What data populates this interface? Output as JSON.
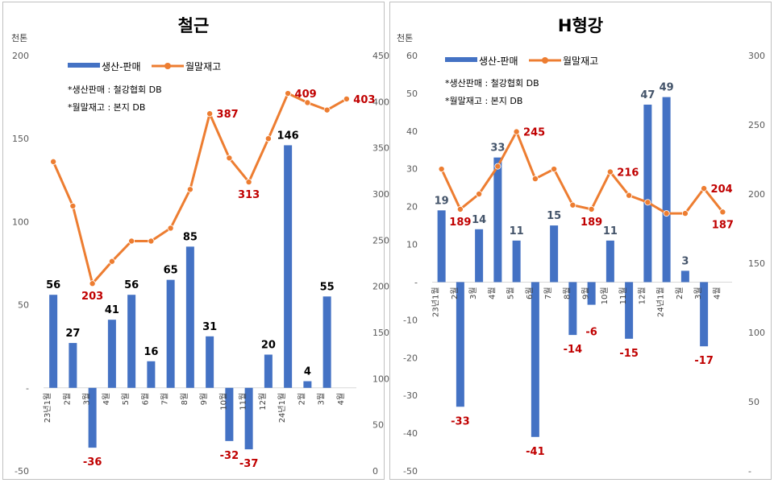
{
  "chart_data": [
    {
      "type": "bar",
      "title": "철근",
      "unit_label": "천톤",
      "legend": [
        "생산-판매",
        "월말재고"
      ],
      "notes": [
        "*생산판매 : 철강협회 DB",
        "*월말재고 : 본지 DB"
      ],
      "categories": [
        "23년1월",
        "2월",
        "3월",
        "4월",
        "5월",
        "6월",
        "7월",
        "8월",
        "9월",
        "10월",
        "11월",
        "12월",
        "24년1월",
        "2월",
        "3월",
        "4월"
      ],
      "series": [
        {
          "name": "생산-판매",
          "chart": "bar",
          "axis": "left",
          "values": [
            56,
            27,
            -36,
            41,
            56,
            16,
            65,
            85,
            31,
            -32,
            -37,
            20,
            146,
            4,
            55,
            null
          ],
          "labels": [
            "56",
            "27",
            "-36",
            "41",
            "56",
            "16",
            "65",
            "85",
            "31",
            "-32",
            "-37",
            "20",
            "146",
            "4",
            "55",
            ""
          ]
        },
        {
          "name": "월말재고",
          "chart": "line",
          "axis": "right",
          "values": [
            335,
            287,
            203,
            227,
            249,
            249,
            263,
            305,
            387,
            339,
            313,
            360,
            409,
            399,
            391,
            403
          ],
          "labels": [
            "",
            "",
            "203",
            "",
            "",
            "",
            "",
            "",
            "387",
            "",
            "313",
            "",
            "409",
            "",
            "",
            "403"
          ]
        }
      ],
      "ylim_left": [
        -50,
        200
      ],
      "yticks_left": [
        "-50",
        "-",
        "50",
        "100",
        "150",
        "200"
      ],
      "ylim_right": [
        0,
        450
      ],
      "yticks_right": [
        "0",
        "50",
        "100",
        "150",
        "200",
        "250",
        "300",
        "350",
        "400",
        "450"
      ]
    },
    {
      "type": "bar",
      "title": "H형강",
      "unit_label": "천톤",
      "legend": [
        "생산-판매",
        "월말재고"
      ],
      "notes": [
        "*생산판매 : 철강협회 DB",
        "*월말재고 : 본지 DB"
      ],
      "categories": [
        "23년1월",
        "2월",
        "3월",
        "4월",
        "5월",
        "6월",
        "7월",
        "8월",
        "9월",
        "10월",
        "11월",
        "12월",
        "24년1월",
        "2월",
        "3월",
        "4월"
      ],
      "series": [
        {
          "name": "생산-판매",
          "chart": "bar",
          "axis": "left",
          "values": [
            19,
            -33,
            14,
            33,
            11,
            -41,
            15,
            -14,
            -6,
            11,
            -15,
            47,
            49,
            3,
            -17,
            null
          ],
          "labels": [
            "19",
            "-33",
            "14",
            "33",
            "11",
            "-41",
            "15",
            "-14",
            "-6",
            "11",
            "-15",
            "47",
            "49",
            "3",
            "-17",
            ""
          ]
        },
        {
          "name": "월말재고",
          "chart": "line",
          "axis": "right",
          "values": [
            218,
            189,
            200,
            220,
            245,
            211,
            218,
            192,
            189,
            216,
            199,
            194,
            186,
            186,
            204,
            187
          ],
          "labels": [
            "",
            "189",
            "",
            "",
            "245",
            "",
            "",
            "",
            "189",
            "216",
            "",
            "",
            "",
            "",
            "204",
            "187"
          ]
        }
      ],
      "ylim_left": [
        -50,
        60
      ],
      "yticks_left": [
        "-50",
        "-40",
        "-30",
        "-20",
        "-10",
        "-",
        "10",
        "20",
        "30",
        "40",
        "50",
        "60"
      ],
      "ylim_right": [
        0,
        300
      ],
      "yticks_right": [
        "-",
        "50",
        "100",
        "150",
        "200",
        "250",
        "300"
      ]
    }
  ],
  "colors": {
    "bar": "#4472c4",
    "line": "#ed7d31",
    "neg_label": "#c00000"
  }
}
